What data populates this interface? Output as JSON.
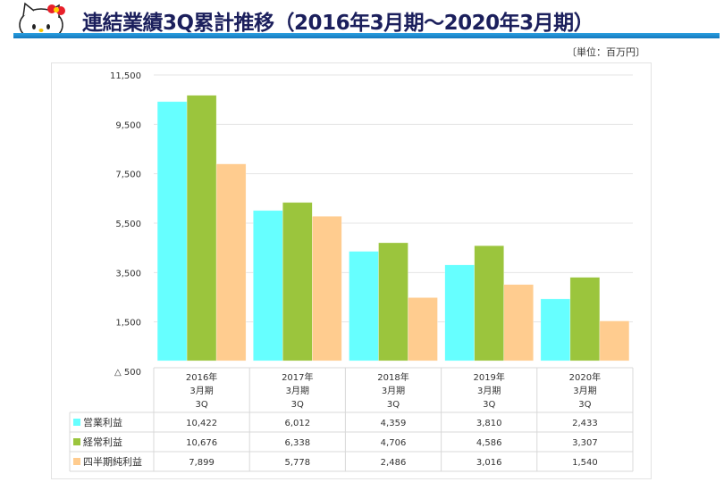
{
  "header": {
    "title": "連結業績3Q累計推移（2016年3月期～2020年3月期）",
    "unit": "〔単位：百万円〕"
  },
  "chart_data": {
    "type": "bar",
    "categories": [
      [
        "2016年",
        "3月期",
        "3Q"
      ],
      [
        "2017年",
        "3月期",
        "3Q"
      ],
      [
        "2018年",
        "3月期",
        "3Q"
      ],
      [
        "2019年",
        "3月期",
        "3Q"
      ],
      [
        "2020年",
        "3月期",
        "3Q"
      ]
    ],
    "series": [
      {
        "name": "営業利益",
        "color": "#66FFFF",
        "values": [
          10422,
          6012,
          4359,
          3810,
          2433
        ],
        "labels": [
          "10,422",
          "6,012",
          "4,359",
          "3,810",
          "2,433"
        ]
      },
      {
        "name": "経常利益",
        "color": "#9BC53D",
        "values": [
          10676,
          6338,
          4706,
          4586,
          3307
        ],
        "labels": [
          "10,676",
          "6,338",
          "4,706",
          "4,586",
          "3,307"
        ]
      },
      {
        "name": "四半期純利益",
        "color": "#FFCC8F",
        "values": [
          7899,
          5778,
          2486,
          3016,
          1540
        ],
        "labels": [
          "7,899",
          "5,778",
          "2,486",
          "3,016",
          "1,540"
        ]
      }
    ],
    "yticks": [
      {
        "value": 11500,
        "label": "11,500"
      },
      {
        "value": 9500,
        "label": "9,500"
      },
      {
        "value": 7500,
        "label": "7,500"
      },
      {
        "value": 5500,
        "label": "5,500"
      },
      {
        "value": 3500,
        "label": "3,500"
      },
      {
        "value": 1500,
        "label": "1,500"
      },
      {
        "value": -500,
        "label": "△ 500"
      }
    ],
    "ylim": [
      -500,
      11500
    ],
    "grid": true,
    "legend": "data-table"
  }
}
